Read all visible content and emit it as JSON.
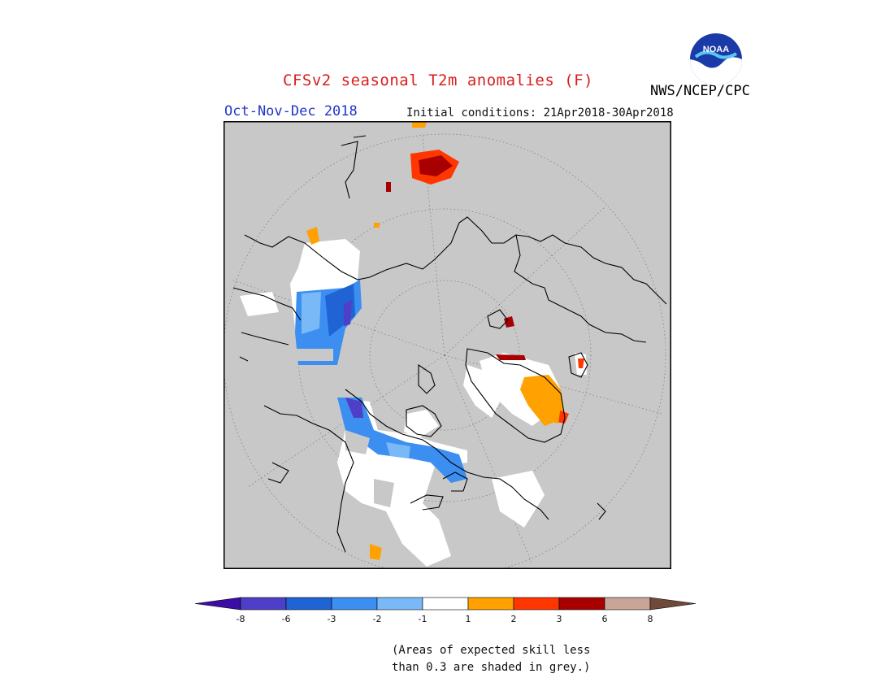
{
  "header": {
    "title": "CFSv2 seasonal T2m anomalies (F)",
    "season": "Oct-Nov-Dec 2018",
    "initial_conditions": "Initial conditions: 21Apr2018-30Apr2018",
    "agency": "NWS/NCEP/CPC",
    "logo_text": "NOAA"
  },
  "legend": {
    "ticks": [
      "-8",
      "-6",
      "-3",
      "-2",
      "-1",
      "1",
      "2",
      "3",
      "6",
      "8"
    ],
    "colors": [
      "#3d0ea3",
      "#4f3fc8",
      "#1f63d4",
      "#3c8ff0",
      "#7ab9f7",
      "#ffffff",
      "#ffa100",
      "#ff3600",
      "#a80000",
      "#c8a596",
      "#6f4a3a"
    ],
    "note_line1": "(Areas of expected skill less",
    "note_line2": "than 0.3 are shaded in grey.)"
  },
  "map": {
    "projection": "north-polar-stereographic",
    "skill_mask_color": "#c8c8c8",
    "coastline_color": "#000000",
    "grid": true
  }
}
